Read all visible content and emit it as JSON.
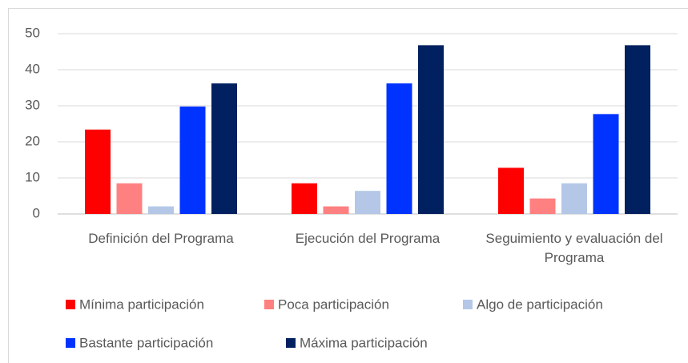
{
  "chart_data": {
    "type": "bar",
    "categories": [
      "Definición del Programa",
      "Ejecución del Programa",
      "Seguimiento y evaluación del Programa"
    ],
    "series": [
      {
        "name": "Mínima participación",
        "color": "#ff0000",
        "values": [
          23.4,
          8.5,
          12.8
        ]
      },
      {
        "name": "Poca participación",
        "color": "#ff8080",
        "values": [
          8.5,
          2.1,
          4.3
        ]
      },
      {
        "name": "Algo de participación",
        "color": "#b4c7e7",
        "values": [
          2.1,
          6.4,
          8.5
        ]
      },
      {
        "name": "Bastante participación",
        "color": "#0033ff",
        "values": [
          29.8,
          36.2,
          27.7
        ]
      },
      {
        "name": "Máxima participación",
        "color": "#002060",
        "values": [
          36.2,
          46.8,
          46.8
        ]
      }
    ],
    "ylim": [
      0,
      50
    ],
    "yticks": [
      0,
      10,
      20,
      30,
      40,
      50
    ],
    "grid": true,
    "legend": "bottom"
  }
}
